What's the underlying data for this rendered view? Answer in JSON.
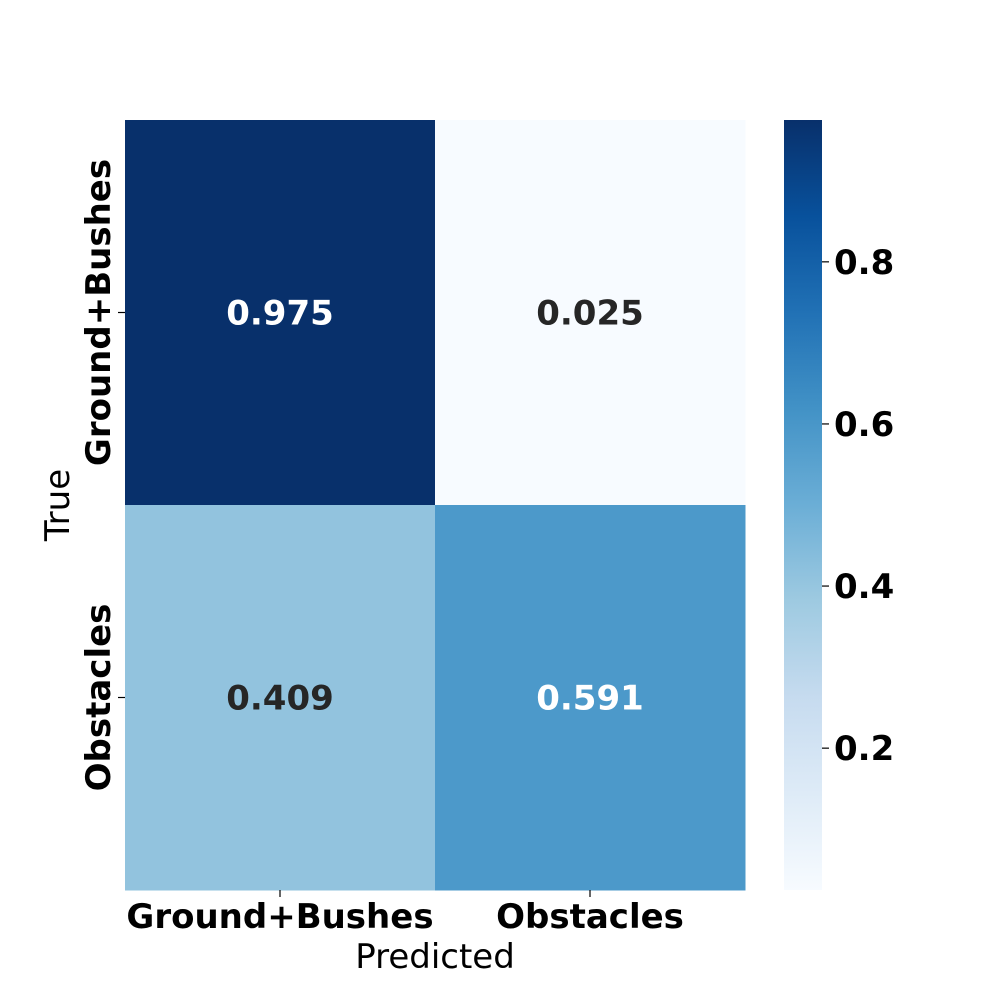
{
  "chart_data": {
    "type": "heatmap",
    "x_categories": [
      "Ground+Bushes",
      "Obstacles"
    ],
    "y_categories": [
      "Ground+Bushes",
      "Obstacles"
    ],
    "values": [
      [
        0.975,
        0.025
      ],
      [
        0.409,
        0.591
      ]
    ],
    "value_labels": [
      [
        "0.975",
        "0.025"
      ],
      [
        "0.409",
        "0.591"
      ]
    ],
    "xlabel": "Predicted",
    "ylabel": "True",
    "colormap": "Blues",
    "colorbar": {
      "min": 0.025,
      "max": 0.975,
      "ticks": [
        0.2,
        0.4,
        0.6,
        0.8
      ],
      "tick_labels": [
        "0.2",
        "0.4",
        "0.6",
        "0.8"
      ]
    },
    "text_colors": {
      "light": "#ffffff",
      "dark": "#262626"
    }
  }
}
